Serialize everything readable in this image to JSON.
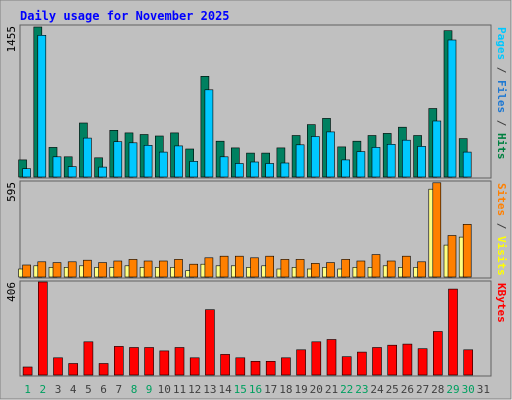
{
  "chart_data": {
    "type": "bar",
    "title": "Daily usage for November 2025",
    "days": [
      "1",
      "2",
      "3",
      "4",
      "5",
      "6",
      "7",
      "8",
      "9",
      "10",
      "11",
      "12",
      "13",
      "14",
      "15",
      "16",
      "17",
      "18",
      "19",
      "20",
      "21",
      "22",
      "23",
      "24",
      "25",
      "26",
      "27",
      "28",
      "29",
      "30",
      "31"
    ],
    "weekend_days": [
      "1",
      "2",
      "8",
      "9",
      "15",
      "16",
      "22",
      "23",
      "29",
      "30"
    ],
    "panels": [
      {
        "name": "hits-files-pages",
        "max_label": "1455",
        "ymax": 1455,
        "side_labels": [
          {
            "text": "Pages",
            "color": "#00c8ff"
          },
          {
            "text": " / ",
            "color": "#404040"
          },
          {
            "text": "Files",
            "color": "#1e78d2"
          },
          {
            "text": " / ",
            "color": "#404040"
          },
          {
            "text": "Hits",
            "color": "#008040"
          }
        ],
        "series": [
          {
            "name": "Hits",
            "color": "#008060",
            "values": [
              165,
              1445,
              285,
              195,
              520,
              185,
              450,
              425,
              410,
              395,
              425,
              270,
              970,
              345,
              280,
              230,
              230,
              280,
              400,
              505,
              565,
              290,
              345,
              400,
              420,
              480,
              400,
              660,
              1410,
              370,
              0
            ]
          },
          {
            "name": "Files",
            "color": "#00c8ff",
            "values": [
              80,
              1365,
              195,
              100,
              375,
              95,
              340,
              330,
              305,
              240,
              300,
              150,
              840,
              195,
              130,
              145,
              130,
              135,
              310,
              390,
              435,
              165,
              245,
              285,
              315,
              355,
              295,
              540,
              1320,
              240,
              0
            ]
          }
        ]
      },
      {
        "name": "visits-sites",
        "max_label": "595",
        "ymax": 595,
        "side_labels": [
          {
            "text": "Sites",
            "color": "#ff8000"
          },
          {
            "text": " / ",
            "color": "#404040"
          },
          {
            "text": "Visits",
            "color": "#ffff00"
          }
        ],
        "series": [
          {
            "name": "Visits",
            "color": "#ffff80",
            "values": [
              50,
              70,
              60,
              60,
              70,
              60,
              60,
              70,
              60,
              60,
              60,
              40,
              80,
              70,
              70,
              60,
              70,
              50,
              60,
              50,
              60,
              50,
              60,
              60,
              70,
              60,
              60,
              550,
              200,
              250,
              0
            ]
          },
          {
            "name": "Sites",
            "color": "#ff8000",
            "values": [
              75,
              95,
              90,
              95,
              105,
              90,
              100,
              110,
              100,
              100,
              110,
              80,
              120,
              130,
              130,
              120,
              130,
              110,
              110,
              85,
              90,
              110,
              100,
              140,
              100,
              130,
              95,
              590,
              260,
              330,
              0
            ]
          }
        ]
      },
      {
        "name": "kbytes",
        "max_label": "406",
        "ymax": 406,
        "side_labels": [
          {
            "text": "KBytes",
            "color": "#ff0000"
          }
        ],
        "series": [
          {
            "name": "KBytes",
            "color": "#ff0000",
            "values": [
              35,
              406,
              75,
              50,
              145,
              50,
              125,
              120,
              120,
              105,
              120,
              75,
              285,
              90,
              75,
              60,
              60,
              75,
              110,
              145,
              155,
              80,
              100,
              120,
              130,
              135,
              115,
              190,
              375,
              110,
              0
            ]
          }
        ]
      }
    ]
  },
  "colors": {
    "border": "#606060",
    "plot_bg": "#c0c0c0",
    "outer_bg": "#c0c0c0",
    "title": "#0000ff",
    "day_normal": "#404040",
    "day_weekend": "#00a060"
  }
}
